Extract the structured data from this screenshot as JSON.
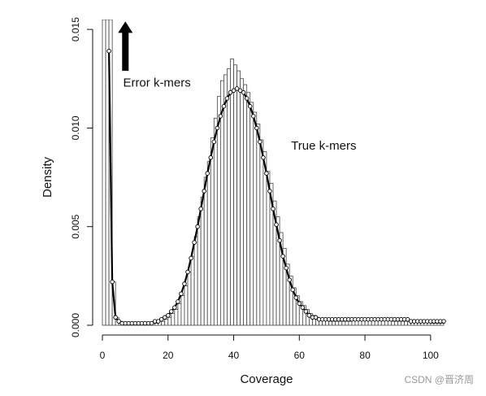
{
  "chart_data": {
    "type": "bar",
    "xlabel": "Coverage",
    "ylabel": "Density",
    "xlim": [
      0,
      104
    ],
    "ylim": [
      0,
      0.0155
    ],
    "x_ticks": [
      0,
      20,
      40,
      60,
      80,
      100
    ],
    "x_tick_labels": [
      "0",
      "20",
      "40",
      "60",
      "80",
      "100"
    ],
    "y_ticks": [
      0.0,
      0.005,
      0.01,
      0.015
    ],
    "y_tick_labels": [
      "0.000",
      "0.005",
      "0.010",
      "0.015"
    ],
    "grid": false,
    "histogram": {
      "bin_width": 1,
      "bins_start": [
        0,
        1,
        2,
        3,
        4,
        5,
        6,
        7,
        8,
        9,
        10,
        11,
        12,
        13,
        14,
        15,
        16,
        17,
        18,
        19,
        20,
        21,
        22,
        23,
        24,
        25,
        26,
        27,
        28,
        29,
        30,
        31,
        32,
        33,
        34,
        35,
        36,
        37,
        38,
        39,
        40,
        41,
        42,
        43,
        44,
        45,
        46,
        47,
        48,
        49,
        50,
        51,
        52,
        53,
        54,
        55,
        56,
        57,
        58,
        59,
        60,
        61,
        62,
        63,
        64,
        65,
        66,
        67,
        68,
        69,
        70,
        71,
        72,
        73,
        74,
        75,
        76,
        77,
        78,
        79,
        80,
        81,
        82,
        83,
        84,
        85,
        86,
        87,
        88,
        89,
        90,
        91,
        92,
        93,
        94,
        95,
        96,
        97,
        98,
        99,
        100,
        101,
        102,
        103
      ],
      "density": [
        0.0155,
        0.0155,
        0.0155,
        0.0022,
        0.0004,
        0.0002,
        0.0001,
        0.0001,
        0.0001,
        0.0001,
        0.0001,
        0.0001,
        0.0001,
        0.0001,
        0.0001,
        0.0001,
        0.0001,
        0.0002,
        0.0002,
        0.0003,
        0.0004,
        0.0006,
        0.0008,
        0.0011,
        0.0015,
        0.002,
        0.0027,
        0.0035,
        0.0045,
        0.0055,
        0.0065,
        0.0075,
        0.0083,
        0.0095,
        0.0105,
        0.0116,
        0.0124,
        0.0127,
        0.013,
        0.0135,
        0.0132,
        0.0129,
        0.0125,
        0.0122,
        0.0118,
        0.0113,
        0.0108,
        0.0102,
        0.0094,
        0.0088,
        0.0078,
        0.0072,
        0.0063,
        0.0055,
        0.0047,
        0.0039,
        0.0031,
        0.0025,
        0.0019,
        0.0015,
        0.0012,
        0.001,
        0.0008,
        0.0006,
        0.0005,
        0.0004,
        0.0003,
        0.0003,
        0.0003,
        0.0002,
        0.0002,
        0.0002,
        0.0002,
        0.0002,
        0.0002,
        0.0002,
        0.0003,
        0.0003,
        0.0003,
        0.0003,
        0.0003,
        0.0003,
        0.0003,
        0.0003,
        0.0003,
        0.0003,
        0.0003,
        0.0003,
        0.0002,
        0.0002,
        0.0002,
        0.0002,
        0.0002,
        0.0002,
        0.0002,
        0.0002,
        0.0002,
        0.0002,
        0.0002,
        0.0002,
        0.0001,
        0.0001,
        0.0001,
        0.0001
      ]
    },
    "series": [
      {
        "type": "line",
        "markers": "open-circle",
        "x": [
          2,
          3,
          4,
          5,
          6,
          7,
          8,
          9,
          10,
          11,
          12,
          13,
          14,
          15,
          16,
          17,
          18,
          19,
          20,
          21,
          22,
          23,
          24,
          25,
          26,
          27,
          28,
          29,
          30,
          31,
          32,
          33,
          34,
          35,
          36,
          37,
          38,
          39,
          40,
          41,
          42,
          43,
          44,
          45,
          46,
          47,
          48,
          49,
          50,
          51,
          52,
          53,
          54,
          55,
          56,
          57,
          58,
          59,
          60,
          61,
          62,
          63,
          64,
          65,
          66,
          67,
          68,
          69,
          70,
          71,
          72,
          73,
          74,
          75,
          76,
          77,
          78,
          79,
          80,
          81,
          82,
          83,
          84,
          85,
          86,
          87,
          88,
          89,
          90,
          91,
          92,
          93,
          94,
          95,
          96,
          97,
          98,
          99,
          100,
          101,
          102,
          103,
          104
        ],
        "y": [
          0.0139,
          0.0022,
          0.0004,
          0.0002,
          0.0001,
          0.0001,
          0.0001,
          0.0001,
          0.0001,
          0.0001,
          0.0001,
          0.0001,
          0.0001,
          0.0001,
          0.0002,
          0.0002,
          0.0003,
          0.0004,
          0.0005,
          0.0007,
          0.0009,
          0.0012,
          0.0016,
          0.0021,
          0.0027,
          0.0034,
          0.0042,
          0.005,
          0.0059,
          0.0068,
          0.0077,
          0.0085,
          0.0093,
          0.01,
          0.0106,
          0.0111,
          0.0115,
          0.0118,
          0.0119,
          0.012,
          0.0119,
          0.0118,
          0.0115,
          0.0111,
          0.0106,
          0.01,
          0.0093,
          0.0085,
          0.0077,
          0.0068,
          0.0059,
          0.0051,
          0.0043,
          0.0035,
          0.0029,
          0.0023,
          0.0018,
          0.0014,
          0.0011,
          0.0009,
          0.0007,
          0.0005,
          0.0004,
          0.0004,
          0.0003,
          0.0003,
          0.0003,
          0.0003,
          0.0003,
          0.0003,
          0.0003,
          0.0003,
          0.0003,
          0.0003,
          0.0003,
          0.0003,
          0.0003,
          0.0003,
          0.0003,
          0.0003,
          0.0003,
          0.0003,
          0.0003,
          0.0003,
          0.0003,
          0.0003,
          0.0003,
          0.0003,
          0.0003,
          0.0003,
          0.0003,
          0.0003,
          0.0002,
          0.0002,
          0.0002,
          0.0002,
          0.0002,
          0.0002,
          0.0002,
          0.0002,
          0.0002,
          0.0002,
          0.0002
        ]
      }
    ],
    "annotations": [
      {
        "text": "Error k-mers",
        "x": 6.3,
        "y": 0.0121
      },
      {
        "text": "True k-mers",
        "x": 57.5,
        "y": 0.0089
      }
    ],
    "arrow": {
      "x": 7,
      "y_from": 0.0129,
      "y_to": 0.0154,
      "color": "#000000"
    }
  },
  "watermark": {
    "text": "CSDN @晋济周"
  },
  "colors": {
    "bar_fill": "#ffffff",
    "bar_stroke": "#444444",
    "line": "#000000",
    "axis": "#111111"
  }
}
